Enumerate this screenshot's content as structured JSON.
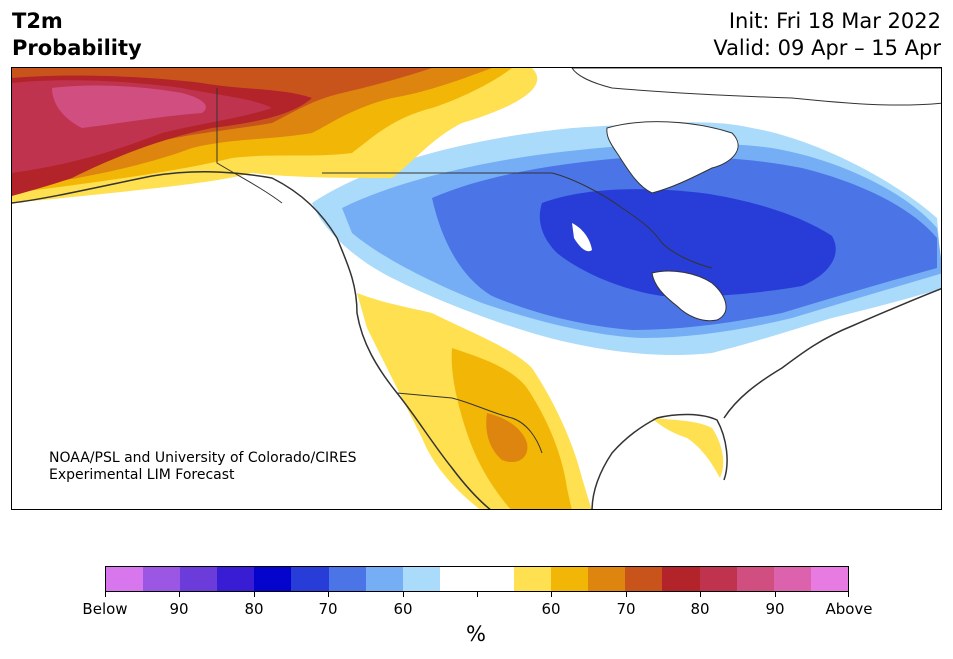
{
  "header": {
    "title_line1": "T2m",
    "title_line2": "Probability",
    "init": "Init: Fri 18 Mar 2022",
    "valid": "Valid: 09 Apr – 15 Apr"
  },
  "map": {
    "credit_line1": "NOAA/PSL and University of Colorado/CIRES",
    "credit_line2": "Experimental LIM Forecast",
    "colors": {
      "below_60": "#abdbfb",
      "below_70": "#75aef5",
      "below_80": "#4b74e6",
      "below_90": "#283dd8",
      "above_60": "#fee050",
      "above_70": "#f2b607",
      "above_80": "#dd850f",
      "above_90": "#c9541b",
      "above_100": "#b2232a",
      "above_110": "#c0334f",
      "above_120": "#d04e80",
      "coast": "#333333"
    }
  },
  "colorbar": {
    "colors": [
      "#d876ee",
      "#9b56e4",
      "#6c3cdb",
      "#391dd4",
      "#0404cc",
      "#283dd8",
      "#4b74e6",
      "#75aef5",
      "#abdbfb",
      "#ffffff",
      "#ffffff",
      "#fee050",
      "#f2b607",
      "#dd850f",
      "#c9541b",
      "#b2232a",
      "#c0334f",
      "#d04e80",
      "#dc62ad",
      "#e77be2"
    ],
    "labels": [
      "Below",
      "90",
      "80",
      "70",
      "60",
      "",
      "60",
      "70",
      "80",
      "90",
      "Above"
    ],
    "unit": "%"
  }
}
